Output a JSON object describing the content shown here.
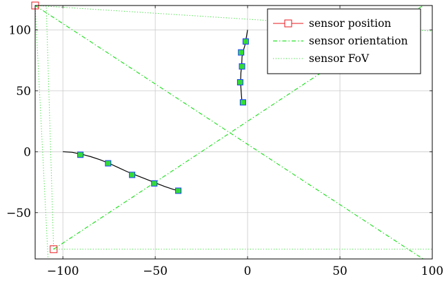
{
  "chart_data": {
    "type": "line",
    "xlim": [
      -115,
      100
    ],
    "ylim": [
      -88,
      120
    ],
    "x_ticks": [
      -100,
      -50,
      0,
      50,
      100
    ],
    "y_ticks": [
      -50,
      0,
      50,
      100
    ],
    "x_tick_labels": [
      "−100",
      "−50",
      "0",
      "50",
      "100"
    ],
    "y_tick_labels": [
      "−50",
      "0",
      "50",
      "100"
    ],
    "grid": true,
    "legend_position": "top-right",
    "colors": {
      "sensor_position": "#e8171c",
      "sensor_orientation": "#00dd00",
      "sensor_fov": "#33dd33",
      "trajectory": "#000000",
      "detection_fill": "#33dd33",
      "detection_edge": "#1a3cff",
      "grid": "#c9c9c9"
    },
    "legend": [
      {
        "label": "sensor position",
        "style": "position"
      },
      {
        "label": "sensor orientation",
        "style": "orientation"
      },
      {
        "label": "sensor FoV",
        "style": "fov"
      }
    ],
    "series": [
      {
        "name": "sensor position",
        "style": "position",
        "points": [
          [
            -115,
            120
          ],
          [
            -105,
            -80
          ]
        ]
      },
      {
        "name": "sensor orientation",
        "style": "orientation",
        "segments": [
          [
            [
              -115,
              120
            ],
            [
              95,
              -88
            ]
          ],
          [
            [
              -105,
              -80
            ],
            [
              95,
              120
            ]
          ]
        ]
      },
      {
        "name": "sensor FoV",
        "style": "fov",
        "segments": [
          [
            [
              -115,
              120
            ],
            [
              100,
              99
            ]
          ],
          [
            [
              -115,
              120
            ],
            [
              -108,
              -88
            ]
          ],
          [
            [
              -105,
              -80
            ],
            [
              100,
              -80
            ]
          ],
          [
            [
              -105,
              -80
            ],
            [
              -109,
              120
            ]
          ]
        ]
      },
      {
        "style": "trajectory",
        "points": [
          [
            -100,
            0
          ],
          [
            -95,
            -0.5
          ],
          [
            -90,
            -2
          ],
          [
            -85,
            -4
          ],
          [
            -80,
            -6.5
          ],
          [
            -75,
            -9.5
          ],
          [
            -70,
            -13
          ],
          [
            -65,
            -16.5
          ],
          [
            -60,
            -19.5
          ],
          [
            -55,
            -22.5
          ],
          [
            -50,
            -25.5
          ],
          [
            -45,
            -28.5
          ],
          [
            -40,
            -31
          ],
          [
            -37,
            -32
          ]
        ]
      },
      {
        "style": "trajectory",
        "points": [
          [
            -3,
            40
          ],
          [
            -3.5,
            50
          ],
          [
            -3.8,
            57
          ],
          [
            -3.6,
            65
          ],
          [
            -3.2,
            70
          ],
          [
            -3,
            78
          ],
          [
            -2.5,
            82
          ],
          [
            -1.5,
            87
          ],
          [
            -1,
            91
          ],
          [
            0,
            100
          ]
        ]
      },
      {
        "style": "detections",
        "points": [
          [
            -90.5,
            -2.5
          ],
          [
            -75.5,
            -9.5
          ],
          [
            -62.5,
            -19
          ],
          [
            -50.5,
            -26
          ],
          [
            -37.5,
            -32
          ],
          [
            -2.5,
            40.5
          ],
          [
            -4,
            57
          ],
          [
            -3,
            70
          ],
          [
            -3.5,
            81.5
          ],
          [
            -1,
            90.5
          ]
        ]
      }
    ]
  }
}
